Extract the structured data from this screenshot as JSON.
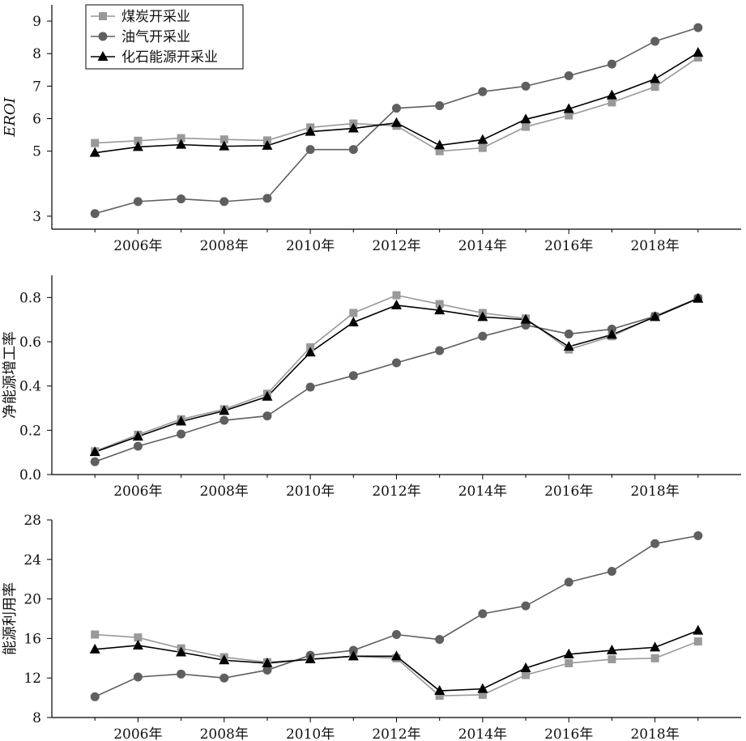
{
  "colors": {
    "coal": "#999999",
    "oilgas": "#5f5f5f",
    "fossil": "#000000",
    "axis": "#000000"
  },
  "chart_data": [
    {
      "type": "line",
      "id": "eroi",
      "ylabel": "EROI",
      "ylabel_italic": true,
      "xlabel": "",
      "x": [
        2005,
        2006,
        2007,
        2008,
        2009,
        2010,
        2011,
        2012,
        2013,
        2014,
        2015,
        2016,
        2017,
        2018,
        2019
      ],
      "x_ticks": [
        2006,
        2008,
        2010,
        2012,
        2014,
        2016,
        2018
      ],
      "x_tick_labels": [
        "2006年",
        "2008年",
        "2010年",
        "2012年",
        "2014年",
        "2016年",
        "2018年"
      ],
      "xlim": [
        2004,
        2020
      ],
      "ylim": [
        2.6,
        9.5
      ],
      "y_ticks": [
        3,
        5,
        6,
        7,
        8,
        9
      ],
      "y_tick_labels": [
        "3",
        "5",
        "6",
        "7",
        "8",
        "9"
      ],
      "grid": false,
      "legend": {
        "position": "top-left",
        "entries": [
          "煤炭开采业",
          "油气开采业",
          "化石能源开采业"
        ]
      },
      "series": [
        {
          "name": "煤炭开采业",
          "marker": "square",
          "color_key": "coal",
          "values": [
            5.25,
            5.32,
            5.4,
            5.36,
            5.33,
            5.73,
            5.85,
            5.78,
            5.0,
            5.1,
            5.75,
            6.1,
            6.5,
            6.98,
            7.88
          ]
        },
        {
          "name": "油气开采业",
          "marker": "circle",
          "color_key": "oilgas",
          "values": [
            3.08,
            3.45,
            3.53,
            3.45,
            3.55,
            5.05,
            5.05,
            6.32,
            6.4,
            6.83,
            7.0,
            7.32,
            7.68,
            8.38,
            8.8
          ]
        },
        {
          "name": "化石能源开采业",
          "marker": "triangle",
          "color_key": "fossil",
          "values": [
            4.95,
            5.13,
            5.2,
            5.15,
            5.17,
            5.6,
            5.7,
            5.87,
            5.18,
            5.35,
            5.98,
            6.3,
            6.72,
            7.22,
            8.03
          ]
        }
      ]
    },
    {
      "type": "line",
      "id": "net-energy-growth",
      "ylabel": "净能源增工率",
      "ylabel_italic": false,
      "xlabel": "",
      "x": [
        2005,
        2006,
        2007,
        2008,
        2009,
        2010,
        2011,
        2012,
        2013,
        2014,
        2015,
        2016,
        2017,
        2018,
        2019
      ],
      "x_ticks": [
        2006,
        2008,
        2010,
        2012,
        2014,
        2016,
        2018
      ],
      "x_tick_labels": [
        "2006年",
        "2008年",
        "2010年",
        "2012年",
        "2014年",
        "2016年",
        "2018年"
      ],
      "xlim": [
        2004,
        2020
      ],
      "ylim": [
        0.0,
        0.9
      ],
      "y_ticks": [
        0.0,
        0.2,
        0.4,
        0.6,
        0.8
      ],
      "y_tick_labels": [
        "0.0",
        "0.2",
        "0.4",
        "0.6",
        "0.8"
      ],
      "grid": false,
      "series": [
        {
          "name": "煤炭开采业",
          "marker": "square",
          "color_key": "coal",
          "values": [
            0.105,
            0.18,
            0.25,
            0.295,
            0.365,
            0.575,
            0.73,
            0.81,
            0.77,
            0.73,
            0.705,
            0.565,
            0.625,
            0.715,
            0.795
          ]
        },
        {
          "name": "油气开采业",
          "marker": "circle",
          "color_key": "oilgas",
          "values": [
            0.058,
            0.128,
            0.183,
            0.245,
            0.265,
            0.395,
            0.447,
            0.505,
            0.56,
            0.625,
            0.675,
            0.635,
            0.657,
            0.715,
            0.797
          ]
        },
        {
          "name": "化石能源开采业",
          "marker": "triangle",
          "color_key": "fossil",
          "values": [
            0.102,
            0.172,
            0.24,
            0.288,
            0.352,
            0.552,
            0.688,
            0.765,
            0.742,
            0.712,
            0.7,
            0.578,
            0.632,
            0.712,
            0.795
          ]
        }
      ]
    },
    {
      "type": "line",
      "id": "energy-utilization",
      "ylabel": "能源利用率",
      "ylabel_italic": false,
      "xlabel": "",
      "x": [
        2005,
        2006,
        2007,
        2008,
        2009,
        2010,
        2011,
        2012,
        2013,
        2014,
        2015,
        2016,
        2017,
        2018,
        2019
      ],
      "x_ticks": [
        2006,
        2008,
        2010,
        2012,
        2014,
        2016,
        2018
      ],
      "x_tick_labels": [
        "2006年",
        "2008年",
        "2010年",
        "2012年",
        "2014年",
        "2016年",
        "2018年"
      ],
      "xlim": [
        2004,
        2020
      ],
      "ylim": [
        8,
        28
      ],
      "y_ticks": [
        8,
        12,
        16,
        20,
        24,
        28
      ],
      "y_tick_labels": [
        "8",
        "12",
        "16",
        "20",
        "24",
        "28"
      ],
      "grid": false,
      "series": [
        {
          "name": "煤炭开采业",
          "marker": "square",
          "color_key": "coal",
          "values": [
            16.4,
            16.1,
            15.0,
            14.1,
            13.6,
            13.9,
            14.2,
            14.0,
            10.2,
            10.3,
            12.3,
            13.5,
            13.9,
            14.0,
            15.7
          ]
        },
        {
          "name": "油气开采业",
          "marker": "circle",
          "color_key": "oilgas",
          "values": [
            10.1,
            12.1,
            12.4,
            12.0,
            12.8,
            14.3,
            14.8,
            16.4,
            15.9,
            18.5,
            19.3,
            21.7,
            22.8,
            25.6,
            26.4
          ]
        },
        {
          "name": "化石能源开采业",
          "marker": "triangle",
          "color_key": "fossil",
          "values": [
            14.9,
            15.3,
            14.6,
            13.8,
            13.5,
            13.9,
            14.2,
            14.2,
            10.7,
            10.9,
            13.0,
            14.4,
            14.8,
            15.1,
            16.8
          ]
        }
      ]
    }
  ]
}
